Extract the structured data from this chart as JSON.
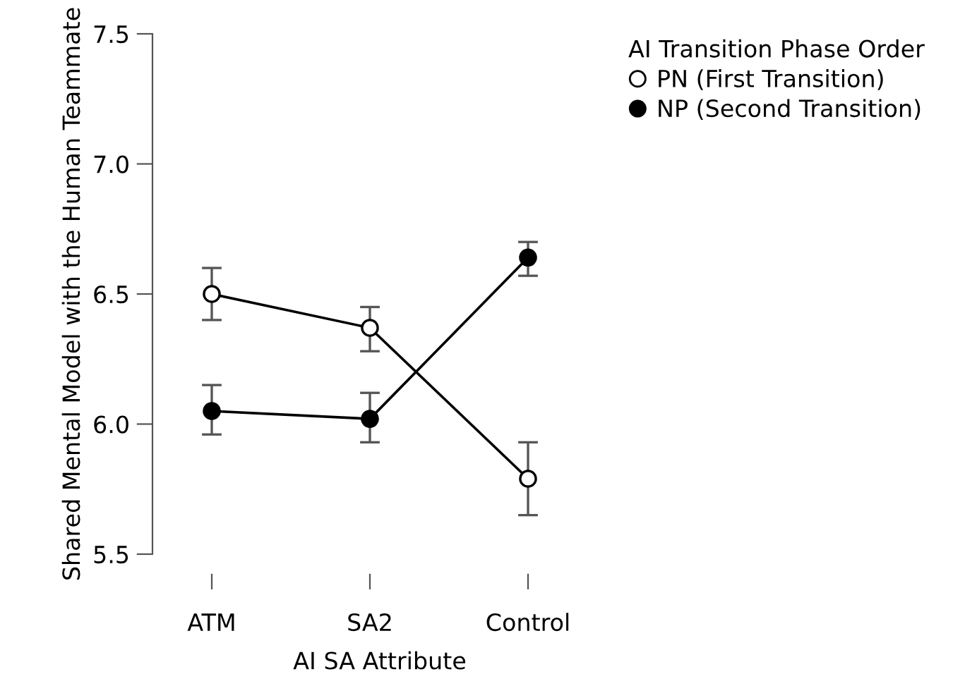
{
  "chart_data": {
    "type": "line",
    "xlabel": "AI SA Attribute",
    "ylabel": "Shared Mental Model with the Human Teammate",
    "legend_title": "AI Transition Phase Order",
    "categories": [
      "ATM",
      "SA2",
      "Control"
    ],
    "series": [
      {
        "name": "PN (First Transition)",
        "color": "#000000",
        "colors": [
          "#ffffff",
          "#ffffff",
          "#ffffff"
        ],
        "values": [
          6.5,
          6.37,
          5.79
        ],
        "errors": [
          [
            6.4,
            6.6
          ],
          [
            6.28,
            6.45
          ],
          [
            5.65,
            5.93
          ]
        ]
      },
      {
        "name": "NP (Second Transition)",
        "color": "#000000",
        "colors": [
          "#000000",
          "#000000",
          "#000000"
        ],
        "values": [
          6.05,
          6.02,
          6.64
        ],
        "errors": [
          [
            5.96,
            6.15
          ],
          [
            5.93,
            6.12
          ],
          [
            6.57,
            6.7
          ]
        ]
      }
    ],
    "ylim": [
      5.5,
      7.5
    ],
    "yticks": [
      {
        "value": 5.5,
        "label": "5.5"
      },
      {
        "value": 6.0,
        "label": "6.0"
      },
      {
        "value": 6.5,
        "label": "6.5"
      },
      {
        "value": 7.0,
        "label": "7.0"
      },
      {
        "value": 7.5,
        "label": "7.5"
      }
    ],
    "grid": false,
    "legend": "top right",
    "marker": "circle",
    "line_style": "solid"
  }
}
